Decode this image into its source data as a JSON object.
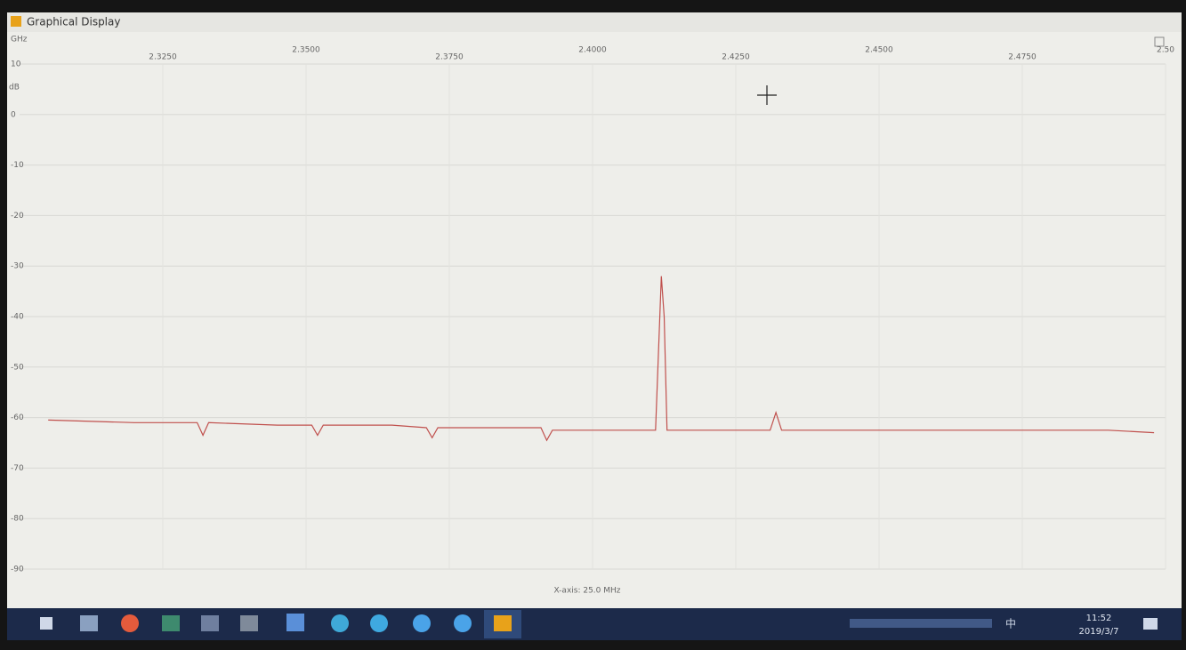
{
  "window": {
    "title": "Graphical Display"
  },
  "chart_data": {
    "type": "line",
    "x_label": "GHz",
    "y_label": "dB",
    "note": "X-axis: 25.0 MHz",
    "x": [
      2.305,
      2.32,
      2.331,
      2.332,
      2.333,
      2.345,
      2.351,
      2.352,
      2.353,
      2.365,
      2.371,
      2.372,
      2.373,
      2.385,
      2.391,
      2.392,
      2.393,
      2.405,
      2.411,
      2.412,
      2.4125,
      2.413,
      2.414,
      2.425,
      2.431,
      2.432,
      2.433,
      2.445,
      2.46,
      2.475,
      2.49,
      2.498
    ],
    "values": [
      -60.5,
      -61,
      -61,
      -63.5,
      -61,
      -61.5,
      -61.5,
      -63.5,
      -61.5,
      -61.5,
      -62,
      -64,
      -62,
      -62,
      -62,
      -64.5,
      -62.5,
      -62.5,
      -62.5,
      -32,
      -40,
      -62.5,
      -62.5,
      -62.5,
      -62.5,
      -59,
      -62.5,
      -62.5,
      -62.5,
      -62.5,
      -62.5,
      -63
    ],
    "color": "#c0504d",
    "xlim": [
      2.3,
      2.5
    ],
    "xticks": [
      {
        "value": 2.325,
        "label": "2.3250"
      },
      {
        "value": 2.35,
        "label": "2.3500"
      },
      {
        "value": 2.375,
        "label": "2.3750"
      },
      {
        "value": 2.4,
        "label": "2.4000"
      },
      {
        "value": 2.425,
        "label": "2.4250"
      },
      {
        "value": 2.45,
        "label": "2.4500"
      },
      {
        "value": 2.475,
        "label": "2.4750"
      },
      {
        "value": 2.5,
        "label": "2.50"
      }
    ],
    "ylim": [
      -90,
      10
    ],
    "yticks": [
      10,
      0,
      -10,
      -20,
      -30,
      -40,
      -50,
      -60,
      -70,
      -80,
      -90
    ],
    "grid": true
  },
  "taskbar": {
    "ime": "中",
    "time": "11:52",
    "date": "2019/3/7"
  }
}
